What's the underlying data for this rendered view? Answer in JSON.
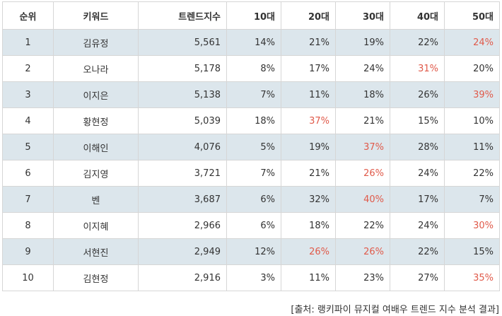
{
  "table": {
    "headers": {
      "rank": "순위",
      "keyword": "키워드",
      "index": "트렌드지수",
      "age10": "10대",
      "age20": "20대",
      "age30": "30대",
      "age40": "40대",
      "age50": "50대"
    },
    "highlight_color": "#e05a4a",
    "shade_color": "#dce6ec",
    "rows": [
      {
        "rank": "1",
        "keyword": "김유정",
        "index": "5,561",
        "age10": "14%",
        "age20": "21%",
        "age30": "19%",
        "age40": "22%",
        "age50": "24%",
        "highlight": "age50"
      },
      {
        "rank": "2",
        "keyword": "오나라",
        "index": "5,178",
        "age10": "8%",
        "age20": "17%",
        "age30": "24%",
        "age40": "31%",
        "age50": "20%",
        "highlight": "age40"
      },
      {
        "rank": "3",
        "keyword": "이지은",
        "index": "5,138",
        "age10": "7%",
        "age20": "11%",
        "age30": "18%",
        "age40": "26%",
        "age50": "39%",
        "highlight": "age50"
      },
      {
        "rank": "4",
        "keyword": "황현정",
        "index": "5,039",
        "age10": "18%",
        "age20": "37%",
        "age30": "21%",
        "age40": "15%",
        "age50": "10%",
        "highlight": "age20"
      },
      {
        "rank": "5",
        "keyword": "이해인",
        "index": "4,076",
        "age10": "5%",
        "age20": "19%",
        "age30": "37%",
        "age40": "28%",
        "age50": "11%",
        "highlight": "age30"
      },
      {
        "rank": "6",
        "keyword": "김지영",
        "index": "3,721",
        "age10": "7%",
        "age20": "21%",
        "age30": "26%",
        "age40": "24%",
        "age50": "22%",
        "highlight": "age30"
      },
      {
        "rank": "7",
        "keyword": "벤",
        "index": "3,687",
        "age10": "6%",
        "age20": "32%",
        "age30": "40%",
        "age40": "17%",
        "age50": "7%",
        "highlight": "age30"
      },
      {
        "rank": "8",
        "keyword": "이지혜",
        "index": "2,966",
        "age10": "6%",
        "age20": "18%",
        "age30": "22%",
        "age40": "24%",
        "age50": "30%",
        "highlight": "age50"
      },
      {
        "rank": "9",
        "keyword": "서현진",
        "index": "2,949",
        "age10": "12%",
        "age20": "26%",
        "age30": "26%",
        "age40": "22%",
        "age50": "15%",
        "highlight": [
          "age20",
          "age30"
        ]
      },
      {
        "rank": "10",
        "keyword": "김현정",
        "index": "2,916",
        "age10": "3%",
        "age20": "11%",
        "age30": "23%",
        "age40": "27%",
        "age50": "35%",
        "highlight": "age50"
      }
    ]
  },
  "source": "[출처: 랭키파이 뮤지컬 여배우 트렌드 지수 분석 결과]"
}
